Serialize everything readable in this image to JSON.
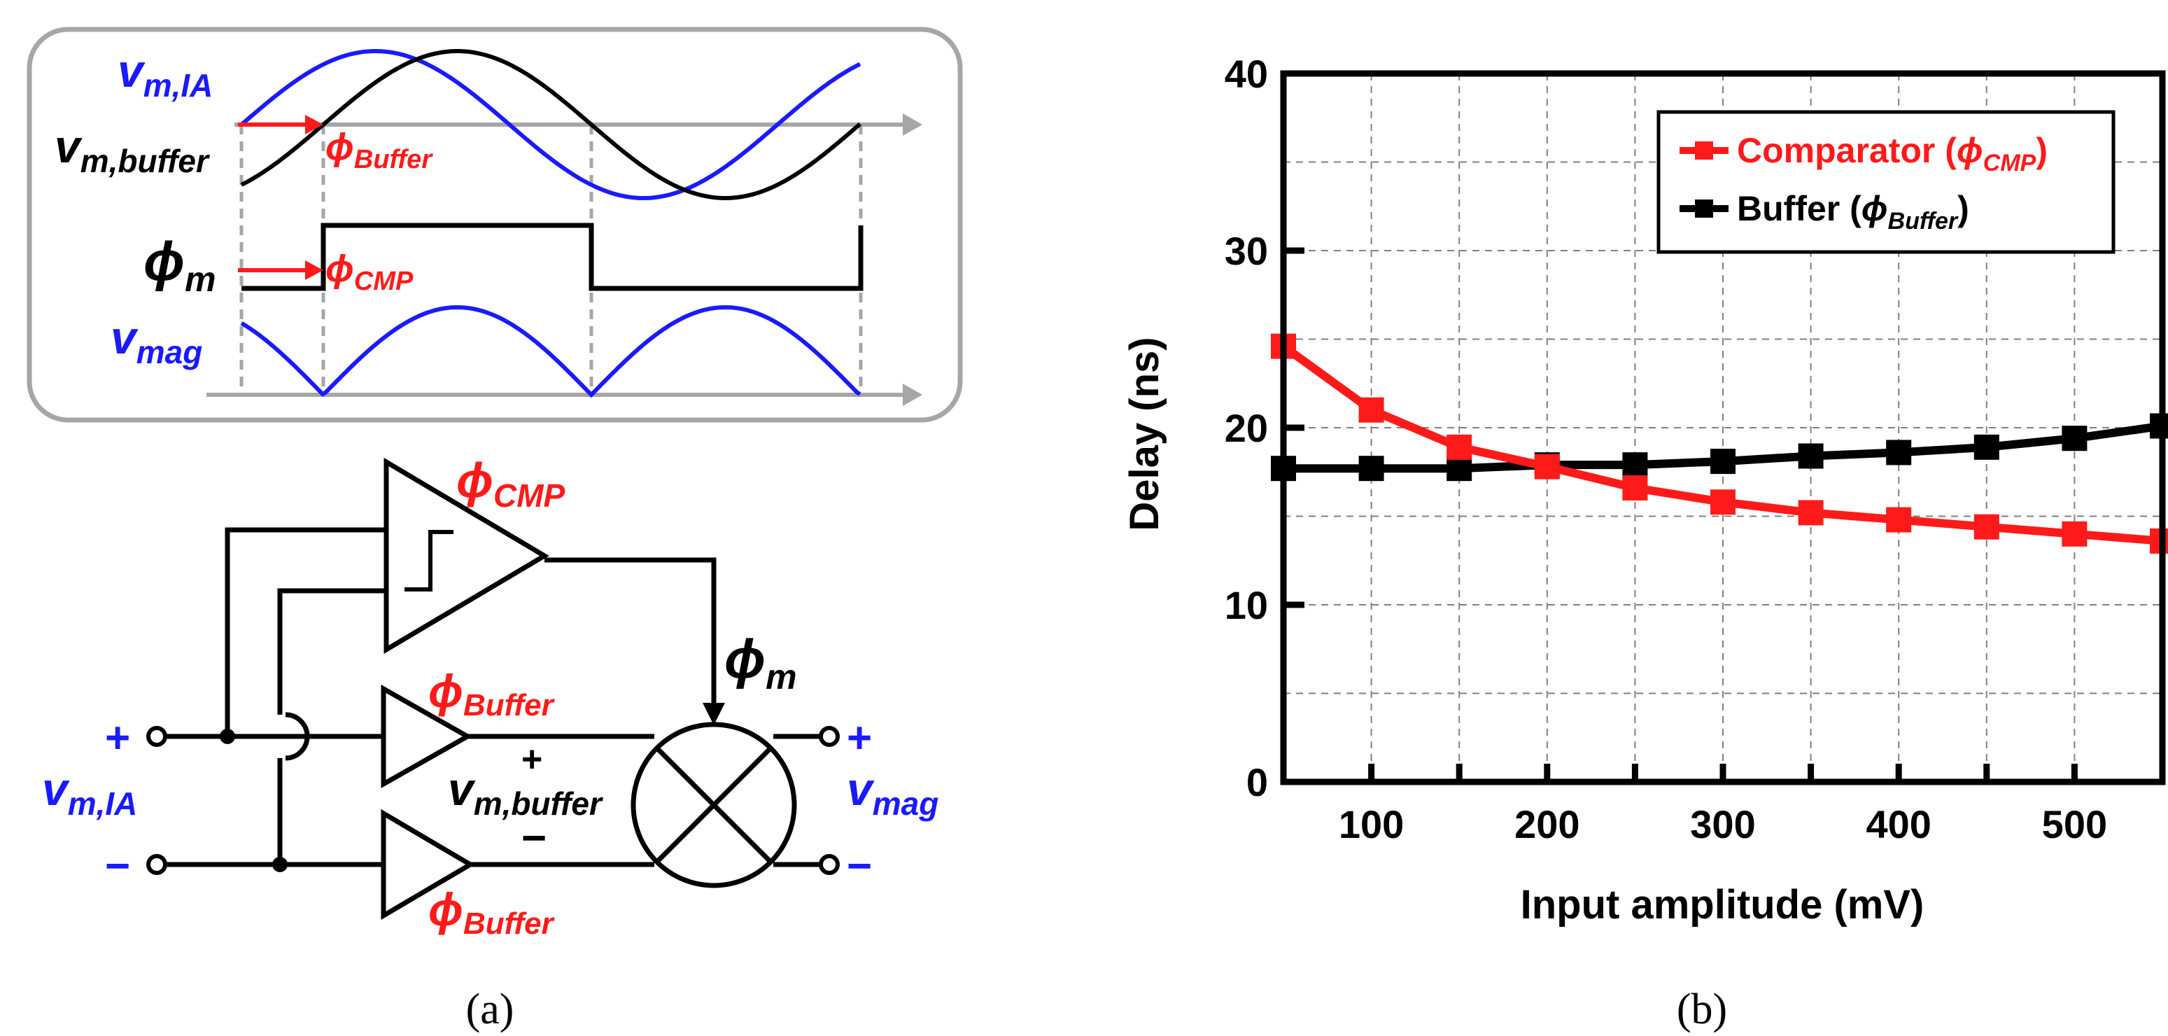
{
  "colors": {
    "blue": "#1a1aff",
    "red": "#ff1a1a",
    "black": "#000000",
    "grey": "#a6a6a6"
  },
  "panel_a": {
    "caption": "(a)",
    "waveform": {
      "v_m_ia_main": "v",
      "v_m_ia_sub": "m,IA",
      "v_m_buffer_main": "v",
      "v_m_buffer_sub": "m,buffer",
      "phi_m_main": "ϕ",
      "phi_m_sub": "m",
      "phi_buffer_main": "ϕ",
      "phi_buffer_sub": "Buffer",
      "phi_cmp_main": "ϕ",
      "phi_cmp_sub": "CMP",
      "v_mag_main": "v",
      "v_mag_sub": "mag"
    },
    "circuit": {
      "phi_cmp_main": "ϕ",
      "phi_cmp_sub": "CMP",
      "phi_buffer_top_main": "ϕ",
      "phi_buffer_top_sub": "Buffer",
      "phi_buffer_bot_main": "ϕ",
      "phi_buffer_bot_sub": "Buffer",
      "phi_m_main": "ϕ",
      "phi_m_sub": "m",
      "plus": "+",
      "minus": "−",
      "v_m_ia_main": "v",
      "v_m_ia_sub": "m,IA",
      "v_m_buffer_main": "v",
      "v_m_buffer_sub": "m,buffer",
      "v_mag_main": "v",
      "v_mag_sub": "mag"
    }
  },
  "panel_b": {
    "caption": "(b)"
  },
  "chart_data": {
    "type": "line",
    "title": "",
    "xlabel": "Input amplitude (mV)",
    "ylabel": "Delay (ns)",
    "xlim": [
      50,
      550
    ],
    "ylim": [
      0,
      40
    ],
    "x_ticks": [
      100,
      200,
      300,
      400,
      500
    ],
    "y_ticks": [
      0,
      10,
      20,
      30,
      40
    ],
    "grid": true,
    "legend_position": "top-right",
    "x": [
      50,
      100,
      150,
      200,
      250,
      300,
      350,
      400,
      450,
      500,
      550
    ],
    "series": [
      {
        "name": "Comparator (ϕCMP)",
        "legend_main": "Comparator (",
        "legend_phi": "ϕ",
        "legend_sub": "CMP",
        "legend_close": ")",
        "color": "#ff1a1a",
        "values": [
          24.6,
          21.0,
          18.9,
          17.8,
          16.6,
          15.8,
          15.2,
          14.8,
          14.4,
          14.0,
          13.6
        ]
      },
      {
        "name": "Buffer (ϕBuffer)",
        "legend_main": "Buffer (",
        "legend_phi": "ϕ",
        "legend_sub": "Buffer",
        "legend_close": ")",
        "color": "#000000",
        "values": [
          17.7,
          17.7,
          17.7,
          17.9,
          17.9,
          18.1,
          18.4,
          18.6,
          18.9,
          19.4,
          20.1
        ]
      }
    ]
  }
}
